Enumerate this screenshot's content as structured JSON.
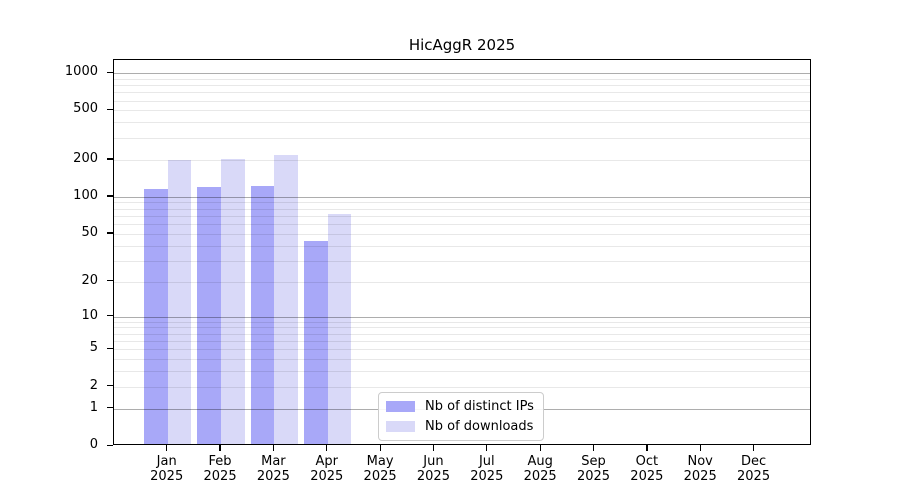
{
  "title": "HicAggR 2025",
  "chart_data": {
    "type": "bar",
    "title": "HicAggR 2025",
    "categories": [
      "Jan",
      "Feb",
      "Mar",
      "Apr",
      "May",
      "Jun",
      "Jul",
      "Aug",
      "Sep",
      "Oct",
      "Nov",
      "Dec"
    ],
    "x_year_line": "2025",
    "series": [
      {
        "name": "Nb of distinct IPs",
        "color": "#a8a8f8",
        "values": [
          112,
          115,
          117,
          42,
          0,
          0,
          0,
          0,
          0,
          0,
          0,
          0
        ]
      },
      {
        "name": "Nb of downloads",
        "color": "#d9d9f8",
        "values": [
          190,
          195,
          210,
          70,
          0,
          0,
          0,
          0,
          0,
          0,
          0,
          0
        ]
      }
    ],
    "xlabel": "",
    "ylabel": "",
    "y_scale": "log1p",
    "ylim": [
      0,
      1250
    ],
    "y_ticks": [
      0,
      1,
      2,
      5,
      10,
      20,
      50,
      100,
      200,
      500,
      1000
    ],
    "y_major_gridlines": [
      1,
      10,
      100,
      1000
    ],
    "y_minor_gridlines": [
      2,
      3,
      4,
      5,
      6,
      7,
      8,
      9,
      20,
      30,
      40,
      50,
      60,
      70,
      80,
      90,
      200,
      300,
      400,
      500,
      600,
      700,
      800,
      900
    ],
    "grid": "horizontal, drawn over bars",
    "legend_position": "inside lower-center-left"
  },
  "legend": {
    "items": [
      {
        "label": "Nb of distinct IPs",
        "color": "#a8a8f8"
      },
      {
        "label": "Nb of downloads",
        "color": "#d9d9f8"
      }
    ]
  },
  "colors": {
    "background": "#ffffff",
    "spine": "#000000",
    "text": "#000000",
    "major_grid": "rgba(0,0,0,0.32)",
    "minor_grid": "rgba(0,0,0,0.09)",
    "legend_border": "#cccccc",
    "bar_distinct_ips": "#a8a8f8",
    "bar_downloads": "#d9d9f8"
  }
}
